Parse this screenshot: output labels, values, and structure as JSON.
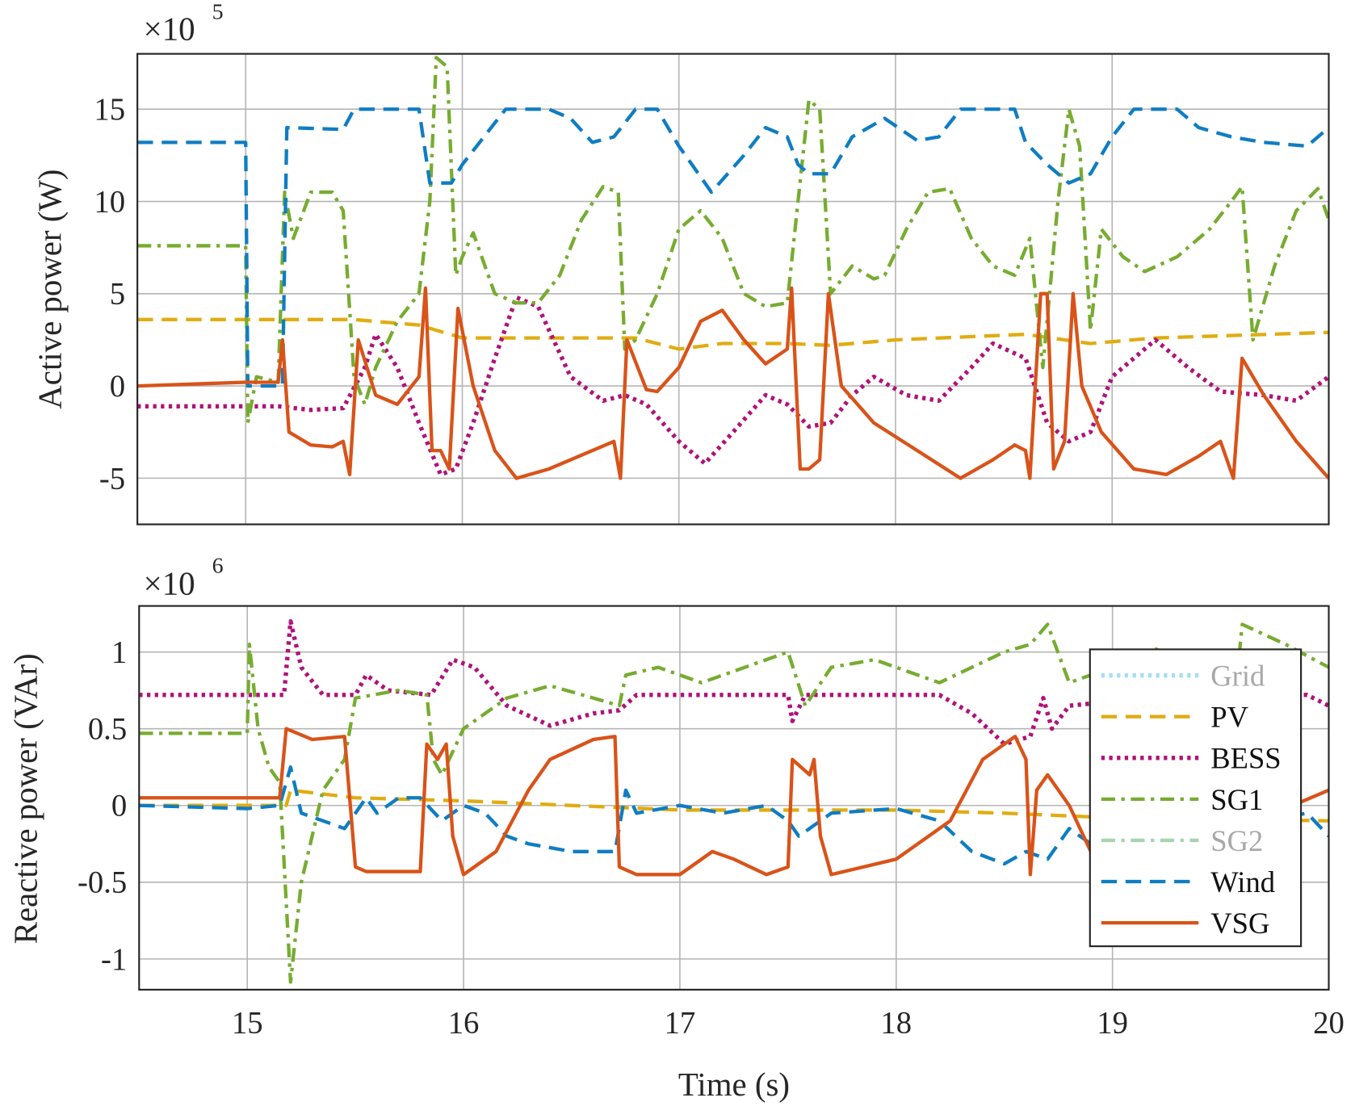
{
  "chart_data": [
    {
      "type": "line",
      "ylabel": "Active power (W)",
      "exponent_label": {
        "base": "×10",
        "power": "5"
      },
      "xlim": [
        14.5,
        20
      ],
      "ylim": [
        -7.5,
        18
      ],
      "xticks": [
        15,
        16,
        17,
        18,
        19,
        20
      ],
      "yticks": [
        -5,
        0,
        5,
        10,
        15
      ],
      "ytick_labels": [
        "-5",
        "0",
        "5",
        "10",
        "15"
      ],
      "grid": true,
      "series": [
        {
          "name": "PV",
          "color": "#E0AC12",
          "style": "dashed",
          "x": [
            14.5,
            15.5,
            15.6,
            15.8,
            16.0,
            16.4,
            16.8,
            17.0,
            17.2,
            17.5,
            17.7,
            18.0,
            18.6,
            18.9,
            19.2,
            20
          ],
          "y": [
            3.6,
            3.6,
            3.5,
            3.3,
            2.6,
            2.6,
            2.6,
            2.0,
            2.3,
            2.3,
            2.2,
            2.5,
            2.8,
            2.3,
            2.6,
            2.9
          ]
        },
        {
          "name": "BESS",
          "color": "#B0127A",
          "style": "dotted",
          "x": [
            14.5,
            15.15,
            15.3,
            15.45,
            15.55,
            15.6,
            15.7,
            15.8,
            15.9,
            15.97,
            16.05,
            16.15,
            16.25,
            16.35,
            16.5,
            16.65,
            16.75,
            16.85,
            17.0,
            17.12,
            17.25,
            17.4,
            17.5,
            17.6,
            17.7,
            17.8,
            17.9,
            18.05,
            18.2,
            18.35,
            18.45,
            18.6,
            18.7,
            18.8,
            18.9,
            19.0,
            19.2,
            19.35,
            19.5,
            19.7,
            19.85,
            20
          ],
          "y": [
            -1.1,
            -1.1,
            -1.3,
            -1.2,
            1,
            2.8,
            1,
            -2,
            -4.8,
            -4.5,
            -2,
            1.5,
            4.8,
            4.3,
            0.5,
            -0.8,
            -0.5,
            -1,
            -3,
            -4.2,
            -2.5,
            -0.5,
            -1,
            -2.2,
            -2,
            -0.5,
            0.5,
            -0.5,
            -0.8,
            1,
            2.3,
            1.5,
            -2,
            -3,
            -2.5,
            0.5,
            2.5,
            1,
            -0.3,
            -0.5,
            -0.8,
            0.5
          ]
        },
        {
          "name": "SG1",
          "color": "#77AC30",
          "style": "dashdot",
          "x": [
            14.5,
            15.0,
            15.01,
            15.05,
            15.15,
            15.18,
            15.22,
            15.3,
            15.4,
            15.45,
            15.5,
            15.55,
            15.6,
            15.7,
            15.8,
            15.85,
            15.88,
            15.93,
            15.97,
            16.0,
            16.05,
            16.15,
            16.25,
            16.35,
            16.45,
            16.55,
            16.65,
            16.72,
            16.75,
            16.8,
            16.9,
            17.0,
            17.1,
            17.2,
            17.3,
            17.4,
            17.5,
            17.55,
            17.6,
            17.65,
            17.7,
            17.8,
            17.9,
            17.95,
            18.05,
            18.15,
            18.25,
            18.35,
            18.45,
            18.55,
            18.62,
            18.68,
            18.75,
            18.8,
            18.85,
            18.9,
            18.95,
            19.05,
            19.15,
            19.3,
            19.45,
            19.55,
            19.6,
            19.65,
            19.75,
            19.85,
            19.95,
            20
          ],
          "y": [
            7.6,
            7.6,
            -2,
            0.5,
            0.2,
            10.5,
            8,
            10.5,
            10.5,
            9.5,
            0.5,
            -1,
            1,
            3.5,
            5,
            10,
            17.8,
            17.3,
            6,
            7,
            8.3,
            5,
            4.5,
            4.5,
            6,
            9,
            10.8,
            10.5,
            2,
            2.5,
            5,
            8.5,
            9.5,
            8,
            5,
            4.3,
            4.5,
            10,
            15.5,
            15,
            5,
            6.5,
            5.8,
            6,
            8.5,
            10.5,
            10.7,
            8,
            6.5,
            6,
            8,
            1,
            10,
            15,
            13,
            3,
            8.5,
            7,
            6.2,
            7,
            8.5,
            10,
            10.8,
            2.5,
            6.5,
            9.5,
            10.7,
            9
          ]
        },
        {
          "name": "Wind",
          "color": "#0F7DC2",
          "style": "dashed",
          "x": [
            14.5,
            15.0,
            15.01,
            15.17,
            15.19,
            15.45,
            15.5,
            15.8,
            15.85,
            15.95,
            16.0,
            16.1,
            16.2,
            16.4,
            16.5,
            16.6,
            16.7,
            16.8,
            16.9,
            17.0,
            17.15,
            17.3,
            17.4,
            17.5,
            17.55,
            17.6,
            17.7,
            17.8,
            17.95,
            18.1,
            18.2,
            18.3,
            18.55,
            18.6,
            18.7,
            18.8,
            18.9,
            19.0,
            19.1,
            19.3,
            19.4,
            19.55,
            19.7,
            19.9,
            20
          ],
          "y": [
            13.2,
            13.2,
            0,
            0,
            14,
            13.9,
            15,
            15,
            11,
            11,
            12,
            13.5,
            15,
            15,
            14.5,
            13.2,
            13.5,
            15,
            15,
            13,
            10.5,
            12.5,
            14,
            13.5,
            12,
            11.5,
            11.5,
            13.5,
            14.5,
            13.3,
            13.5,
            15,
            15,
            13.2,
            12,
            11,
            11.5,
            13.5,
            15,
            15,
            14,
            13.5,
            13.2,
            13,
            14
          ]
        },
        {
          "name": "VSG",
          "color": "#D95319",
          "style": "solid",
          "x": [
            14.5,
            15.0,
            15.15,
            15.17,
            15.2,
            15.3,
            15.4,
            15.45,
            15.48,
            15.52,
            15.6,
            15.7,
            15.8,
            15.83,
            15.86,
            15.9,
            15.94,
            15.98,
            16.05,
            16.15,
            16.25,
            16.4,
            16.6,
            16.7,
            16.73,
            16.76,
            16.85,
            16.9,
            17.0,
            17.1,
            17.2,
            17.3,
            17.4,
            17.5,
            17.52,
            17.56,
            17.6,
            17.65,
            17.69,
            17.75,
            17.9,
            18.1,
            18.3,
            18.45,
            18.55,
            18.6,
            18.62,
            18.67,
            18.7,
            18.73,
            18.78,
            18.82,
            18.86,
            18.95,
            19.1,
            19.25,
            19.4,
            19.5,
            19.56,
            19.6,
            19.7,
            19.85,
            20
          ],
          "y": [
            0,
            0.2,
            0.2,
            2.5,
            -2.5,
            -3.2,
            -3.3,
            -3,
            -4.8,
            2.5,
            -0.5,
            -1,
            0.5,
            5.3,
            -3.5,
            -3.5,
            -4.5,
            4.2,
            0,
            -3.5,
            -5,
            -4.5,
            -3.5,
            -3,
            -5,
            2.5,
            -0.2,
            -0.3,
            1,
            3.5,
            4.1,
            2.5,
            1.2,
            2,
            5.3,
            -4.5,
            -4.5,
            -4,
            5,
            0,
            -2,
            -3.5,
            -5,
            -4,
            -3.2,
            -3.5,
            -5,
            5,
            5,
            -4.5,
            -3,
            5,
            0,
            -2.5,
            -4.5,
            -4.8,
            -3.8,
            -3,
            -5,
            1.5,
            -0.5,
            -3,
            -5
          ]
        }
      ]
    },
    {
      "type": "line",
      "xlabel": "Time (s)",
      "ylabel": "Reactive power (VAr)",
      "exponent_label": {
        "base": "×10",
        "power": "6"
      },
      "xlim": [
        14.5,
        20
      ],
      "ylim": [
        -1.2,
        1.3
      ],
      "xticks": [
        15,
        16,
        17,
        18,
        19,
        20
      ],
      "xtick_labels": [
        "15",
        "16",
        "17",
        "18",
        "19",
        "20"
      ],
      "yticks": [
        -1,
        -0.5,
        0,
        0.5,
        1
      ],
      "ytick_labels": [
        "-1",
        "-0.5",
        "0",
        "0.5",
        "1"
      ],
      "grid": true,
      "legend": {
        "placement": "bottom-right",
        "entries": [
          {
            "name": "Grid",
            "color": "#A6DDF5",
            "style": "dotted",
            "faded": true
          },
          {
            "name": "PV",
            "color": "#E0AC12",
            "style": "dashed",
            "faded": false
          },
          {
            "name": "BESS",
            "color": "#B0127A",
            "style": "dotted",
            "faded": false
          },
          {
            "name": "SG1",
            "color": "#77AC30",
            "style": "dashdot",
            "faded": false
          },
          {
            "name": "SG2",
            "color": "#A9D3AE",
            "style": "dashdot",
            "faded": true
          },
          {
            "name": "Wind",
            "color": "#0F7DC2",
            "style": "dashed",
            "faded": false
          },
          {
            "name": "VSG",
            "color": "#D95319",
            "style": "solid",
            "faded": false
          }
        ]
      },
      "series": [
        {
          "name": "PV",
          "color": "#E0AC12",
          "style": "dashed",
          "x": [
            14.5,
            15.18,
            15.2,
            15.5,
            16,
            17,
            18,
            18.5,
            19,
            20
          ],
          "y": [
            0,
            0,
            0.1,
            0.05,
            0.03,
            -0.03,
            -0.03,
            -0.05,
            -0.08,
            -0.1
          ]
        },
        {
          "name": "BESS",
          "color": "#B0127A",
          "style": "dotted",
          "x": [
            14.5,
            15.17,
            15.2,
            15.25,
            15.35,
            15.5,
            15.55,
            15.65,
            15.85,
            15.95,
            16.05,
            16.2,
            16.4,
            16.6,
            16.72,
            16.8,
            17.5,
            17.52,
            17.58,
            18.2,
            18.35,
            18.5,
            18.62,
            18.68,
            18.72,
            18.8,
            19.3,
            19.9,
            20
          ],
          "y": [
            0.72,
            0.72,
            1.2,
            0.9,
            0.72,
            0.72,
            0.85,
            0.75,
            0.72,
            0.95,
            0.9,
            0.65,
            0.52,
            0.6,
            0.62,
            0.72,
            0.72,
            0.55,
            0.72,
            0.72,
            0.6,
            0.4,
            0.45,
            0.7,
            0.5,
            0.65,
            0.72,
            0.72,
            0.65
          ]
        },
        {
          "name": "SG1",
          "color": "#77AC30",
          "style": "dashdot",
          "x": [
            14.5,
            15.0,
            15.01,
            15.05,
            15.1,
            15.15,
            15.2,
            15.25,
            15.35,
            15.45,
            15.5,
            15.7,
            15.83,
            15.86,
            15.9,
            16.0,
            16.2,
            16.4,
            16.6,
            16.72,
            16.75,
            16.9,
            17.1,
            17.3,
            17.5,
            17.58,
            17.7,
            17.9,
            18.2,
            18.5,
            18.62,
            18.7,
            18.8,
            19.0,
            19.2,
            19.4,
            19.58,
            19.6,
            19.8,
            20
          ],
          "y": [
            0.47,
            0.47,
            1.05,
            0.5,
            0.25,
            0.15,
            -1.15,
            -0.5,
            0.1,
            0.3,
            0.7,
            0.75,
            0.72,
            0.3,
            0.2,
            0.5,
            0.7,
            0.78,
            0.7,
            0.65,
            0.85,
            0.9,
            0.8,
            0.9,
            1.0,
            0.65,
            0.9,
            0.95,
            0.8,
            1.0,
            1.05,
            1.18,
            0.8,
            0.9,
            1.02,
            0.9,
            0.9,
            1.18,
            1.05,
            0.9
          ]
        },
        {
          "name": "Wind",
          "color": "#0F7DC2",
          "style": "dashed",
          "x": [
            14.5,
            15.0,
            15.15,
            15.2,
            15.25,
            15.35,
            15.45,
            15.5,
            15.55,
            15.6,
            15.7,
            15.8,
            15.9,
            16.0,
            16.1,
            16.2,
            16.3,
            16.5,
            16.7,
            16.75,
            16.8,
            17.0,
            17.2,
            17.4,
            17.5,
            17.55,
            17.65,
            17.7,
            18.0,
            18.2,
            18.35,
            18.5,
            18.6,
            18.7,
            18.8,
            18.9,
            19.0,
            19.5,
            19.9,
            20
          ],
          "y": [
            0,
            -0.02,
            0,
            0.25,
            -0.05,
            -0.1,
            -0.15,
            -0.05,
            0.05,
            -0.05,
            0.05,
            0.05,
            -0.1,
            0,
            -0.05,
            -0.2,
            -0.25,
            -0.3,
            -0.3,
            0.1,
            -0.05,
            0,
            -0.05,
            0,
            -0.1,
            -0.2,
            -0.1,
            -0.05,
            -0.02,
            -0.1,
            -0.3,
            -0.38,
            -0.3,
            -0.35,
            -0.15,
            -0.25,
            -0.3,
            -0.15,
            -0.05,
            -0.2
          ]
        },
        {
          "name": "VSG",
          "color": "#D95319",
          "style": "solid",
          "x": [
            14.5,
            15.0,
            15.15,
            15.18,
            15.3,
            15.45,
            15.5,
            15.55,
            15.8,
            15.83,
            15.88,
            15.92,
            15.95,
            16.0,
            16.15,
            16.3,
            16.4,
            16.6,
            16.7,
            16.72,
            16.8,
            17.0,
            17.15,
            17.25,
            17.4,
            17.5,
            17.52,
            17.6,
            17.62,
            17.65,
            17.7,
            18.0,
            18.25,
            18.4,
            18.55,
            18.6,
            18.62,
            18.65,
            18.7,
            18.8,
            18.9,
            19.5,
            20
          ],
          "y": [
            0.05,
            0.05,
            0.05,
            0.5,
            0.43,
            0.45,
            -0.4,
            -0.43,
            -0.43,
            0.4,
            0.3,
            0.4,
            -0.2,
            -0.45,
            -0.3,
            0.1,
            0.3,
            0.43,
            0.45,
            -0.4,
            -0.45,
            -0.45,
            -0.3,
            -0.35,
            -0.45,
            -0.4,
            0.3,
            0.2,
            0.3,
            -0.2,
            -0.45,
            -0.35,
            -0.1,
            0.3,
            0.45,
            0.3,
            -0.45,
            0.1,
            0.2,
            0,
            -0.3,
            -0.2,
            0.1
          ]
        }
      ]
    }
  ]
}
